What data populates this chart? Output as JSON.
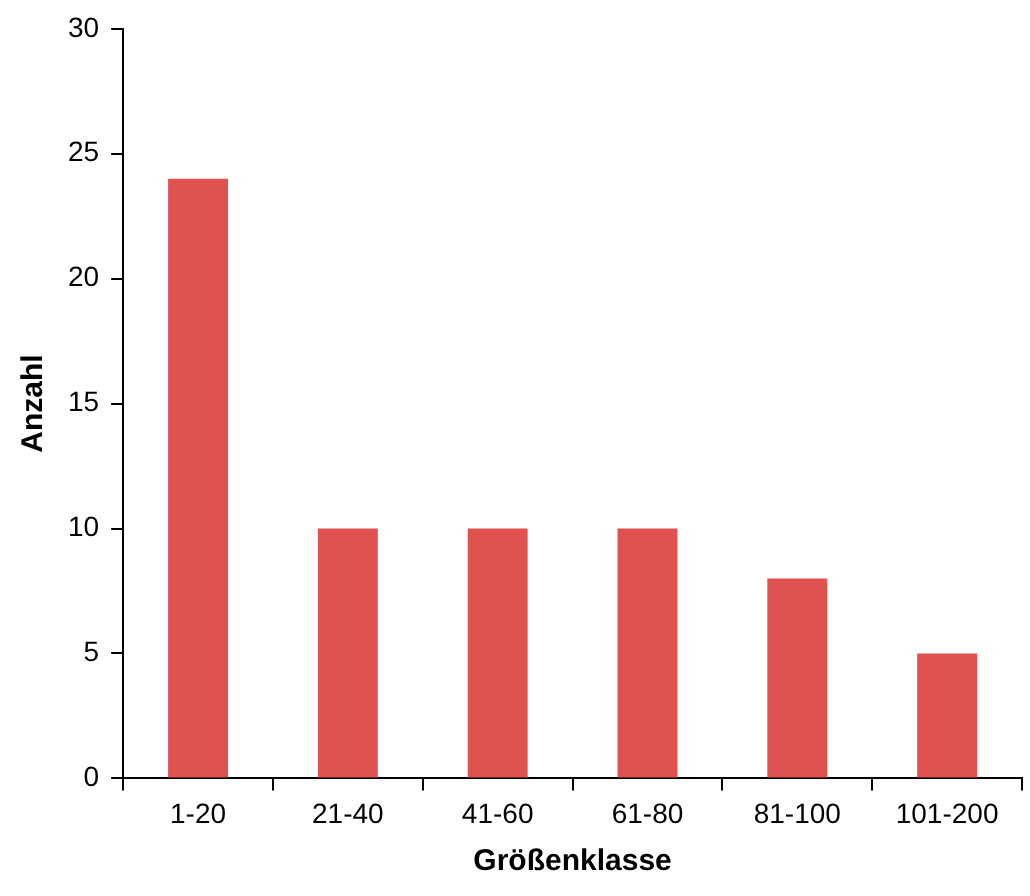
{
  "chart_data": {
    "type": "bar",
    "xlabel": "Größenklasse",
    "ylabel": "Anzahl",
    "categories": [
      "1-20",
      "21-40",
      "41-60",
      "61-80",
      "81-100",
      "101-200"
    ],
    "values": [
      24,
      10,
      10,
      10,
      8,
      5
    ],
    "color": "#e05250",
    "ylim": [
      0,
      30
    ],
    "yticks": [
      0,
      5,
      10,
      15,
      20,
      25,
      30
    ],
    "grid": false,
    "legend": false
  }
}
